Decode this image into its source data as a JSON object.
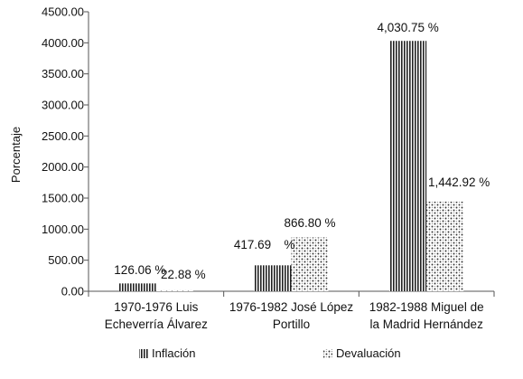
{
  "chart_data": {
    "type": "bar",
    "title": "",
    "xlabel": "",
    "ylabel": "Porcentaje",
    "ylim": [
      0,
      4500
    ],
    "ytick_labels": [
      "0.00",
      "500.00",
      "1000.00",
      "1500.00",
      "2000.00",
      "2500.00",
      "3000.00",
      "3500.00",
      "4000.00",
      "4500.00"
    ],
    "ytick_values": [
      0,
      500,
      1000,
      1500,
      2000,
      2500,
      3000,
      3500,
      4000,
      4500
    ],
    "grid": false,
    "legend_position": "bottom",
    "categories": [
      [
        "1970-1976 Luis",
        "Echeverría Álvarez"
      ],
      [
        "1976-1982 José López",
        "Portillo"
      ],
      [
        "1982-1988 Miguel de",
        "la Madrid Hernández"
      ]
    ],
    "series": [
      {
        "name": "Inflación",
        "pattern": "vertical-stripes",
        "values": [
          126.06,
          417.69,
          4030.75
        ],
        "labels": [
          "126.06 %",
          "417.69",
          "4,030.75 %"
        ]
      },
      {
        "name": "Devaluación",
        "pattern": "dots",
        "values": [
          22.88,
          866.8,
          1442.92
        ],
        "labels": [
          "22.88 %",
          "866.80 %",
          "1,442.92 %"
        ]
      }
    ],
    "extra_labels": [
      {
        "category_index": 1,
        "text": "%"
      }
    ],
    "colors": {
      "axis": "#555555",
      "stripe": "#222222",
      "dots": "#333333"
    }
  }
}
